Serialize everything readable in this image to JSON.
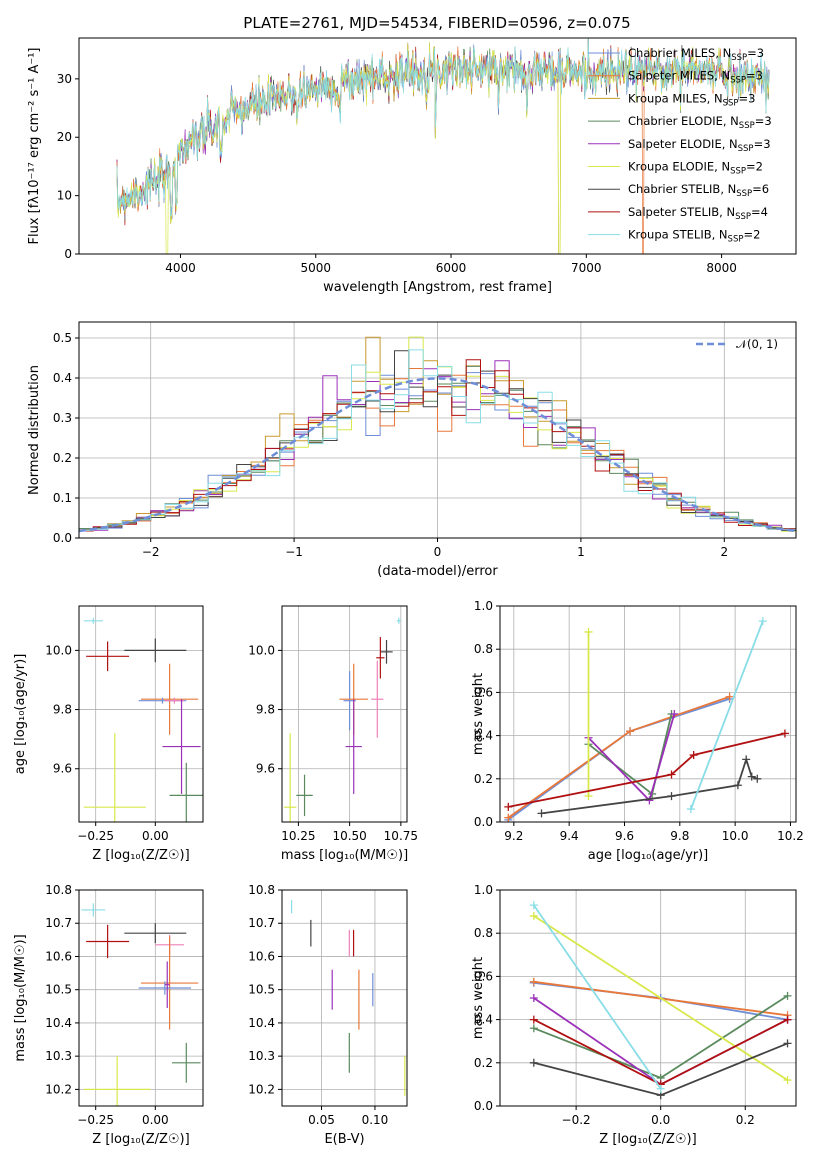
{
  "colors": {
    "Chabrier MILES": "#6f8ed8",
    "Salpeter MILES": "#e8783a",
    "Kroupa MILES": "#c89a2e",
    "Chabrier ELODIE": "#5a8a5e",
    "Salpeter ELODIE": "#9b30b8",
    "Kroupa ELODIE": "#d8e84a",
    "Chabrier STELIB": "#444444",
    "Salpeter STELIB": "#b01010",
    "Kroupa STELIB": "#88dde6",
    "extra_pink": "#ee80b8",
    "gauss": "#6f8ed8"
  },
  "chart_data": [
    {
      "id": "spectrum",
      "type": "line",
      "title": "PLATE=2761, MJD=54534, FIBERID=0596, z=0.075",
      "xlabel": "wavelength [Angstrom, rest frame]",
      "ylabel": "Flux [fλ10⁻¹⁷ erg cm⁻² s⁻¹ A⁻¹]",
      "xlim": [
        3250,
        8550
      ],
      "ylim": [
        0,
        37
      ],
      "xticks": [
        "4000",
        "5000",
        "6000",
        "7000",
        "8000"
      ],
      "yticks": [
        "0",
        "10",
        "20",
        "30"
      ],
      "legend": "upper right",
      "continuum_x": [
        3530,
        3700,
        3900,
        3950,
        4050,
        4200,
        4400,
        4600,
        4800,
        5000,
        5200,
        5500,
        5800,
        6000,
        6300,
        6600,
        6900,
        7200,
        7500,
        7800,
        8000,
        8300
      ],
      "continuum_y": [
        9,
        11,
        13,
        16,
        19,
        21,
        24,
        26,
        27,
        28.5,
        29.5,
        30.5,
        31.5,
        32,
        31.5,
        31.5,
        31,
        31,
        31.5,
        31.5,
        31,
        30
      ],
      "series": [
        {
          "name": "Chabrier MILES, N",
          "sub": "SSP",
          "suffix": "=3",
          "color_key": "Chabrier MILES"
        },
        {
          "name": "Salpeter MILES, N",
          "sub": "SSP",
          "suffix": "=3",
          "color_key": "Salpeter MILES"
        },
        {
          "name": "Kroupa MILES, N",
          "sub": "SSP",
          "suffix": "=3",
          "color_key": "Kroupa MILES"
        },
        {
          "name": "Chabrier ELODIE, N",
          "sub": "SSP",
          "suffix": "=3",
          "color_key": "Chabrier ELODIE"
        },
        {
          "name": "Salpeter ELODIE, N",
          "sub": "SSP",
          "suffix": "=3",
          "color_key": "Salpeter ELODIE"
        },
        {
          "name": "Kroupa ELODIE, N",
          "sub": "SSP",
          "suffix": "=2",
          "color_key": "Kroupa ELODIE"
        },
        {
          "name": "Chabrier STELIB, N",
          "sub": "SSP",
          "suffix": "=6",
          "color_key": "Chabrier STELIB"
        },
        {
          "name": "Salpeter STELIB, N",
          "sub": "SSP",
          "suffix": "=4",
          "color_key": "Salpeter STELIB"
        },
        {
          "name": "Kroupa STELIB, N",
          "sub": "SSP",
          "suffix": "=2",
          "color_key": "Kroupa STELIB"
        }
      ]
    },
    {
      "id": "residuals",
      "type": "bar",
      "xlabel": "(data-model)/error",
      "ylabel": "Normed distribution",
      "xlim": [
        -2.5,
        2.5
      ],
      "ylim": [
        0,
        0.54
      ],
      "xticks": [
        "−2",
        "−1",
        "0",
        "1",
        "2"
      ],
      "yticks": [
        "0.0",
        "0.1",
        "0.2",
        "0.3",
        "0.4",
        "0.5"
      ],
      "bin_width": 0.1,
      "legend": "upper right",
      "gauss_label": "𝒩(0, 1)"
    },
    {
      "id": "age-vs-Z",
      "type": "scatter",
      "xlabel": "Z [log₁₀(Z/Z☉)]",
      "ylabel": "age  [log₁₀(age/yr)]",
      "xlim": [
        -0.32,
        0.2
      ],
      "ylim": [
        9.42,
        10.15
      ],
      "xticks": [
        "−0.25",
        "0.00"
      ],
      "yticks": [
        "9.6",
        "9.8",
        "10.0"
      ],
      "points": [
        {
          "c": "Kroupa STELIB",
          "x": -0.26,
          "xerr": 0.04,
          "y": 10.1,
          "yerr": 0.01
        },
        {
          "c": "Chabrier STELIB",
          "x": 0.0,
          "xerr": 0.13,
          "y": 10.0,
          "yerr": 0.04
        },
        {
          "c": "Salpeter STELIB",
          "x": -0.2,
          "xerr": 0.09,
          "y": 9.98,
          "yerr": 0.05
        },
        {
          "c": "Salpeter MILES",
          "x": 0.06,
          "xerr": 0.12,
          "y": 9.835,
          "yerr": 0.12
        },
        {
          "c": "Chabrier MILES",
          "x": 0.03,
          "xerr": 0.1,
          "y": 9.83,
          "yerr": 0.01
        },
        {
          "c": "extra_pink",
          "x": 0.08,
          "xerr": 0.04,
          "y": 9.83,
          "yerr": 0.01
        },
        {
          "c": "Salpeter ELODIE",
          "x": 0.11,
          "xerr": 0.08,
          "y": 9.675,
          "yerr": 0.16
        },
        {
          "c": "Chabrier ELODIE",
          "x": 0.13,
          "xerr": 0.07,
          "y": 9.51,
          "yerr": 0.11
        },
        {
          "c": "Kroupa ELODIE",
          "x": -0.17,
          "xerr": 0.13,
          "y": 9.47,
          "yerr": 0.25
        }
      ]
    },
    {
      "id": "age-vs-mass",
      "type": "scatter",
      "xlabel": "mass [log₁₀(M/M☉)]",
      "xlim": [
        10.17,
        10.78
      ],
      "ylim": [
        9.42,
        10.15
      ],
      "xticks": [
        "10.25",
        "10.50",
        "10.75"
      ],
      "yticks": [
        "9.6",
        "9.8",
        "10.0"
      ],
      "points": [
        {
          "c": "Kroupa STELIB",
          "x": 10.74,
          "xerr": 0.01,
          "y": 10.1,
          "yerr": 0.01
        },
        {
          "c": "Chabrier STELIB",
          "x": 10.68,
          "xerr": 0.03,
          "y": 9.995,
          "yerr": 0.04
        },
        {
          "c": "Salpeter STELIB",
          "x": 10.65,
          "xerr": 0.02,
          "y": 9.975,
          "yerr": 0.07
        },
        {
          "c": "extra_pink",
          "x": 10.635,
          "xerr": 0.03,
          "y": 9.835,
          "yerr": 0.13
        },
        {
          "c": "Chabrier MILES",
          "x": 10.5,
          "xerr": 0.03,
          "y": 9.83,
          "yerr": 0.1
        },
        {
          "c": "Salpeter MILES",
          "x": 10.52,
          "xerr": 0.07,
          "y": 9.835,
          "yerr": 0.12
        },
        {
          "c": "Salpeter ELODIE",
          "x": 10.52,
          "xerr": 0.04,
          "y": 9.675,
          "yerr": 0.16
        },
        {
          "c": "Chabrier ELODIE",
          "x": 10.28,
          "xerr": 0.04,
          "y": 9.51,
          "yerr": 0.07
        },
        {
          "c": "Kroupa ELODIE",
          "x": 10.21,
          "xerr": 0.03,
          "y": 9.47,
          "yerr": 0.25
        }
      ]
    },
    {
      "id": "weight-vs-age",
      "type": "line",
      "xlabel": "age  [log₁₀(age/yr)]",
      "ylabel": "mass weight",
      "xlim": [
        9.15,
        10.22
      ],
      "ylim": [
        0,
        1
      ],
      "xticks": [
        "9.2",
        "9.4",
        "9.6",
        "9.8",
        "10.0",
        "10.2"
      ],
      "yticks": [
        "0.0",
        "0.2",
        "0.4",
        "0.6",
        "0.8",
        "1.0"
      ],
      "series": [
        {
          "c": "Chabrier MILES",
          "x": [
            9.18,
            9.62,
            9.98
          ],
          "y": [
            0.01,
            0.42,
            0.57
          ]
        },
        {
          "c": "Salpeter MILES",
          "x": [
            9.18,
            9.62,
            9.98
          ],
          "y": [
            0.02,
            0.42,
            0.58
          ]
        },
        {
          "c": "Chabrier ELODIE",
          "x": [
            9.47,
            9.7,
            9.77
          ],
          "y": [
            0.36,
            0.13,
            0.5
          ]
        },
        {
          "c": "Salpeter ELODIE",
          "x": [
            9.47,
            9.69,
            9.78
          ],
          "y": [
            0.39,
            0.1,
            0.5
          ]
        },
        {
          "c": "Kroupa ELODIE",
          "x": [
            9.47,
            9.47
          ],
          "y": [
            0.12,
            0.88
          ]
        },
        {
          "c": "Chabrier STELIB",
          "x": [
            9.3,
            9.77,
            10.01,
            10.04,
            10.06,
            10.08
          ],
          "y": [
            0.04,
            0.12,
            0.17,
            0.29,
            0.21,
            0.2
          ]
        },
        {
          "c": "Salpeter STELIB",
          "x": [
            9.18,
            9.77,
            9.85,
            10.18
          ],
          "y": [
            0.07,
            0.22,
            0.31,
            0.41
          ]
        },
        {
          "c": "Kroupa STELIB",
          "x": [
            9.84,
            10.1
          ],
          "y": [
            0.06,
            0.93
          ]
        }
      ]
    },
    {
      "id": "mass-vs-Z",
      "type": "scatter",
      "xlabel": "Z [log₁₀(Z/Z☉)]",
      "ylabel": "mass [log₁₀(M/M☉)]",
      "xlim": [
        -0.32,
        0.2
      ],
      "ylim": [
        10.15,
        10.8
      ],
      "xticks": [
        "−0.25",
        "0.00"
      ],
      "yticks": [
        "10.2",
        "10.3",
        "10.4",
        "10.5",
        "10.6",
        "10.7",
        "10.8"
      ],
      "points": [
        {
          "c": "Kroupa STELIB",
          "x": -0.26,
          "xerr": 0.05,
          "y": 10.74,
          "yerr": 0.02
        },
        {
          "c": "Chabrier STELIB",
          "x": 0.0,
          "xerr": 0.13,
          "y": 10.67,
          "yerr": 0.03
        },
        {
          "c": "Salpeter STELIB",
          "x": -0.2,
          "xerr": 0.09,
          "y": 10.645,
          "yerr": 0.05
        },
        {
          "c": "extra_pink",
          "x": 0.06,
          "xerr": 0.06,
          "y": 10.635,
          "yerr": 0.03
        },
        {
          "c": "Salpeter MILES",
          "x": 0.06,
          "xerr": 0.12,
          "y": 10.52,
          "yerr": 0.14
        },
        {
          "c": "Chabrier MILES",
          "x": 0.04,
          "xerr": 0.11,
          "y": 10.505,
          "yerr": 0.02
        },
        {
          "c": "Salpeter ELODIE",
          "x": 0.05,
          "xerr": 0.01,
          "y": 10.515,
          "yerr": 0.07
        },
        {
          "c": "Chabrier ELODIE",
          "x": 0.13,
          "xerr": 0.06,
          "y": 10.28,
          "yerr": 0.06
        },
        {
          "c": "Kroupa ELODIE",
          "x": -0.16,
          "xerr": 0.14,
          "y": 10.2,
          "yerr": 0.1
        }
      ]
    },
    {
      "id": "mass-vs-EBV",
      "type": "scatter",
      "xlabel": "E(B-V)",
      "xlim": [
        0.013,
        0.13
      ],
      "ylim": [
        10.15,
        10.8
      ],
      "xticks": [
        "0.05",
        "0.10"
      ],
      "yticks": [
        "10.2",
        "10.3",
        "10.4",
        "10.5",
        "10.6",
        "10.7",
        "10.8"
      ],
      "points": [
        {
          "c": "Kroupa STELIB",
          "x": 0.022,
          "xerr": 0,
          "y": 10.75,
          "yerr": 0.02
        },
        {
          "c": "Chabrier STELIB",
          "x": 0.04,
          "xerr": 0,
          "y": 10.67,
          "yerr": 0.04
        },
        {
          "c": "Salpeter STELIB",
          "x": 0.08,
          "xerr": 0,
          "y": 10.64,
          "yerr": 0.04
        },
        {
          "c": "extra_pink",
          "x": 0.076,
          "xerr": 0,
          "y": 10.64,
          "yerr": 0.04
        },
        {
          "c": "Salpeter MILES",
          "x": 0.085,
          "xerr": 0,
          "y": 10.47,
          "yerr": 0.09
        },
        {
          "c": "Chabrier MILES",
          "x": 0.098,
          "xerr": 0,
          "y": 10.5,
          "yerr": 0.05
        },
        {
          "c": "Salpeter ELODIE",
          "x": 0.06,
          "xerr": 0,
          "y": 10.5,
          "yerr": 0.06
        },
        {
          "c": "Chabrier ELODIE",
          "x": 0.076,
          "xerr": 0,
          "y": 10.31,
          "yerr": 0.06
        },
        {
          "c": "Kroupa ELODIE",
          "x": 0.128,
          "xerr": 0,
          "y": 10.24,
          "yerr": 0.06
        }
      ]
    },
    {
      "id": "weight-vs-Z",
      "type": "line",
      "xlabel": "Z [log₁₀(Z/Z☉)]",
      "ylabel": "mass weight",
      "xlim": [
        -0.38,
        0.32
      ],
      "ylim": [
        0,
        1
      ],
      "xticks": [
        "−0.2",
        "0.0",
        "0.2"
      ],
      "yticks": [
        "0.0",
        "0.2",
        "0.4",
        "0.6",
        "0.8",
        "1.0"
      ],
      "series": [
        {
          "c": "Chabrier MILES",
          "x": [
            -0.3,
            0.0,
            0.3
          ],
          "y": [
            0.57,
            0.5,
            0.4
          ]
        },
        {
          "c": "Salpeter MILES",
          "x": [
            -0.3,
            0.3
          ],
          "y": [
            0.575,
            0.42
          ]
        },
        {
          "c": "Chabrier ELODIE",
          "x": [
            -0.3,
            0.0,
            0.3
          ],
          "y": [
            0.36,
            0.13,
            0.51
          ]
        },
        {
          "c": "Salpeter ELODIE",
          "x": [
            -0.3,
            0.0,
            0.3
          ],
          "y": [
            0.5,
            0.1,
            0.4
          ]
        },
        {
          "c": "Kroupa ELODIE",
          "x": [
            -0.3,
            0.3
          ],
          "y": [
            0.88,
            0.12
          ]
        },
        {
          "c": "Chabrier STELIB",
          "x": [
            -0.3,
            0.0,
            0.3
          ],
          "y": [
            0.2,
            0.05,
            0.29
          ]
        },
        {
          "c": "Salpeter STELIB",
          "x": [
            -0.3,
            0.0,
            0.3
          ],
          "y": [
            0.4,
            0.1,
            0.4
          ]
        },
        {
          "c": "Kroupa STELIB",
          "x": [
            -0.3,
            0.0
          ],
          "y": [
            0.93,
            0.08
          ]
        }
      ]
    }
  ]
}
